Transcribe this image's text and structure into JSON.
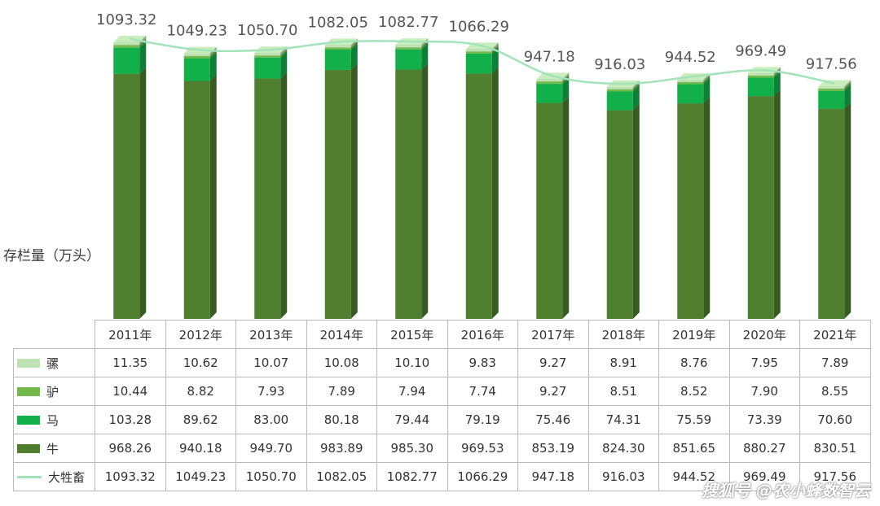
{
  "chart_data": {
    "type": "bar",
    "subtype": "stacked-3d-bar-with-line",
    "ylabel": "存栏量（万头）",
    "categories": [
      "2011年",
      "2012年",
      "2013年",
      "2014年",
      "2015年",
      "2016年",
      "2017年",
      "2018年",
      "2019年",
      "2020年",
      "2021年"
    ],
    "series": [
      {
        "name": "骡",
        "color": "#bfe3b4",
        "values": [
          11.35,
          10.62,
          10.07,
          10.08,
          10.1,
          9.83,
          9.27,
          8.91,
          8.76,
          7.95,
          7.89
        ]
      },
      {
        "name": "驴",
        "color": "#72b84a",
        "values": [
          10.44,
          8.82,
          7.93,
          7.89,
          7.94,
          7.74,
          9.27,
          8.51,
          8.52,
          7.9,
          8.55
        ]
      },
      {
        "name": "马",
        "color": "#12b04b",
        "values": [
          103.28,
          89.62,
          83.0,
          80.18,
          79.44,
          79.19,
          75.46,
          74.31,
          75.59,
          73.39,
          70.6
        ]
      },
      {
        "name": "牛",
        "color": "#4e7e2e",
        "values": [
          968.26,
          940.18,
          949.7,
          983.89,
          985.3,
          969.53,
          853.19,
          824.3,
          851.65,
          880.27,
          830.51
        ]
      }
    ],
    "line_series": {
      "name": "大牲畜",
      "color": "#a3e3b9",
      "values": [
        1093.32,
        1049.23,
        1050.7,
        1082.05,
        1082.77,
        1066.29,
        947.18,
        916.03,
        944.52,
        969.49,
        917.56
      ]
    },
    "data_labels": [
      "1093.32",
      "1049.23",
      "1050.70",
      "1082.05",
      "1082.77",
      "1066.29",
      "947.18",
      "916.03",
      "944.52",
      "969.49",
      "917.56"
    ],
    "table_rows": [
      {
        "name": "骡",
        "values": [
          "11.35",
          "10.62",
          "10.07",
          "10.08",
          "10.10",
          "9.83",
          "9.27",
          "8.91",
          "8.76",
          "7.95",
          "7.89"
        ]
      },
      {
        "name": "驴",
        "values": [
          "10.44",
          "8.82",
          "7.93",
          "7.89",
          "7.94",
          "7.74",
          "9.27",
          "8.51",
          "8.52",
          "7.90",
          "8.55"
        ]
      },
      {
        "name": "马",
        "values": [
          "103.28",
          "89.62",
          "83.00",
          "80.18",
          "79.44",
          "79.19",
          "75.46",
          "74.31",
          "75.59",
          "73.39",
          "70.60"
        ]
      },
      {
        "name": "牛",
        "values": [
          "968.26",
          "940.18",
          "949.70",
          "983.89",
          "985.30",
          "969.53",
          "853.19",
          "824.30",
          "851.65",
          "880.27",
          "830.51"
        ]
      },
      {
        "name": "大牲畜",
        "values": [
          "1093.32",
          "1049.23",
          "1050.70",
          "1082.05",
          "1082.77",
          "1066.29",
          "947.18",
          "916.03",
          "944.52",
          "969.49",
          "917.56"
        ]
      }
    ],
    "grid": false,
    "legend": "in-table"
  },
  "watermark": "搜狐号 @农小蜂数智云"
}
